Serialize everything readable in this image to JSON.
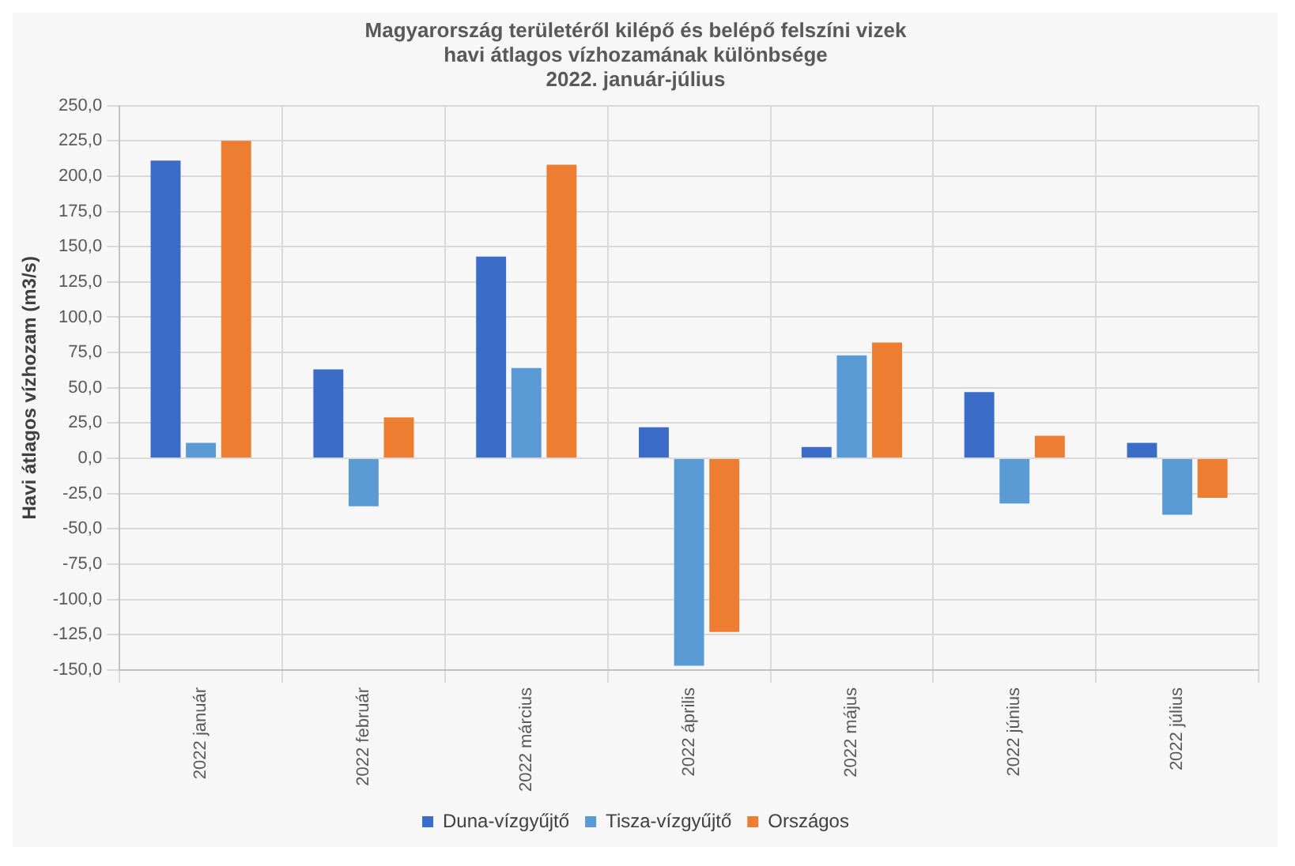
{
  "chart_data": {
    "type": "bar",
    "title": "Magyarország területéről kilépő és belépő felszíni vizek\nhavi átlagos vízhozamának különbsége\n2022. január-július",
    "ylabel": "Havi átlagos vízhozam (m3/s)",
    "categories": [
      "2022 január",
      "2022 február",
      "2022 március",
      "2022 április",
      "2022 május",
      "2022 június",
      "2022 július"
    ],
    "series": [
      {
        "name": "Duna-vízgyűjtő",
        "color": "#3b6cc7",
        "values": [
          211,
          63,
          143,
          22,
          8,
          47,
          11
        ]
      },
      {
        "name": "Tisza-vízgyűjtő",
        "color": "#5b9bd5",
        "values": [
          11,
          -34,
          64,
          -147,
          73,
          -32,
          -40
        ]
      },
      {
        "name": "Országos",
        "color": "#ed7d31",
        "values": [
          225,
          29,
          208,
          -123,
          82,
          16,
          -28
        ]
      }
    ],
    "ylim": [
      -150,
      250
    ],
    "yticks": [
      {
        "value": -150,
        "label": "-150,0"
      },
      {
        "value": -125,
        "label": "-125,0"
      },
      {
        "value": -100,
        "label": "-100,0"
      },
      {
        "value": -75,
        "label": "-75,0"
      },
      {
        "value": -50,
        "label": "-50,0"
      },
      {
        "value": -25,
        "label": "-25,0"
      },
      {
        "value": 0,
        "label": "0,0"
      },
      {
        "value": 25,
        "label": "25,0"
      },
      {
        "value": 50,
        "label": "50,0"
      },
      {
        "value": 75,
        "label": "75,0"
      },
      {
        "value": 100,
        "label": "100,0"
      },
      {
        "value": 125,
        "label": "125,0"
      },
      {
        "value": 150,
        "label": "150,0"
      },
      {
        "value": 175,
        "label": "175,0"
      },
      {
        "value": 200,
        "label": "200,0"
      },
      {
        "value": 225,
        "label": "225,0"
      },
      {
        "value": 250,
        "label": "250,0"
      }
    ],
    "grid": true,
    "legend": "bottom"
  }
}
